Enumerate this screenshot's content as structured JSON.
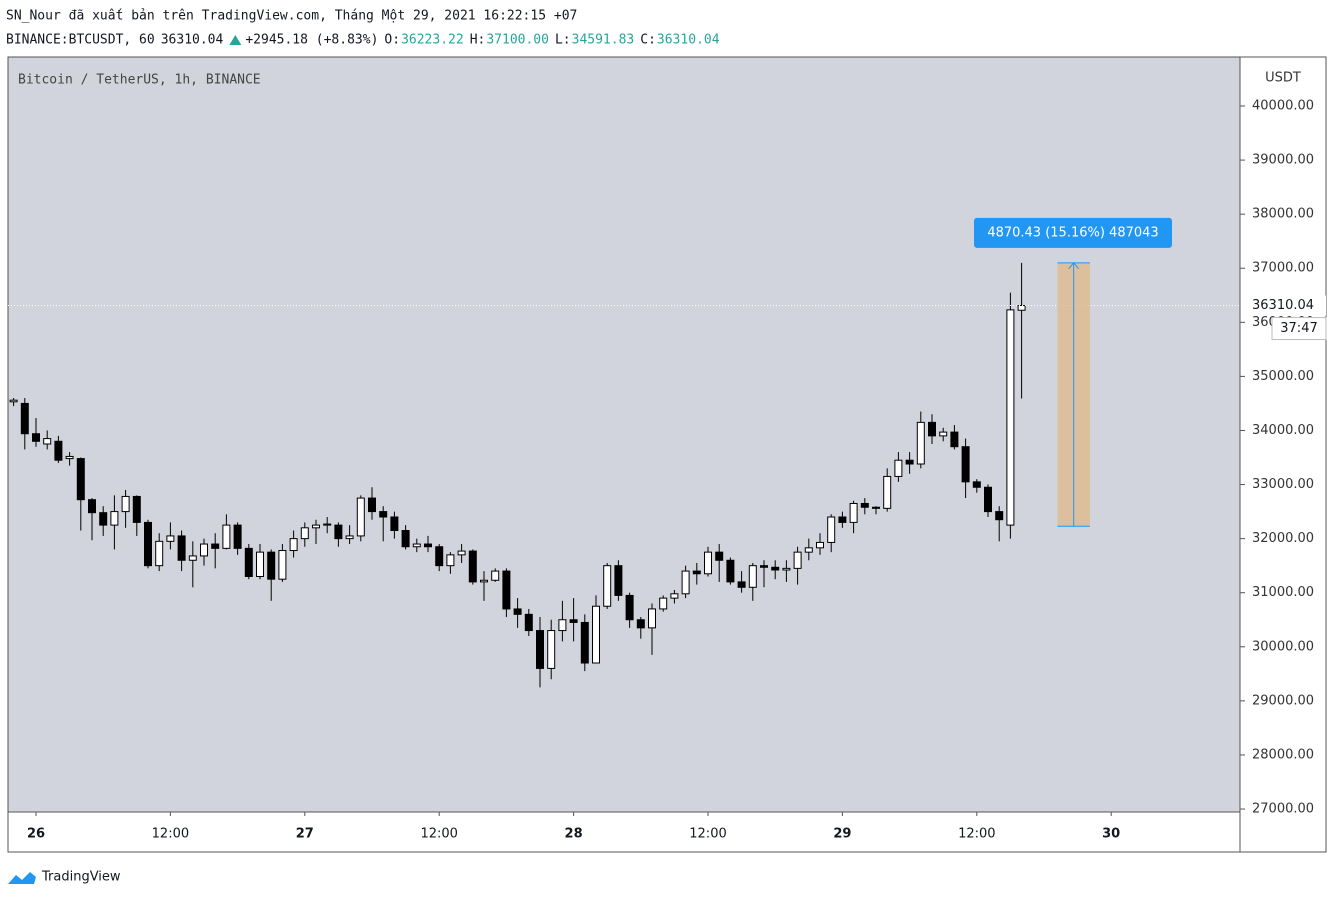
{
  "chart_data": {
    "type": "candlestick",
    "header": {
      "publisher": "SN_Nour đã xuất bản trên TradingView.com, Tháng Một 29, 2021 16:22:15 +07",
      "symbol": "BINANCE:BTCUSDT, 60",
      "price": "36310.04",
      "change": "+2945.18 (+8.83%)",
      "ohlc": [
        {
          "label": "O:",
          "value": "36223.22"
        },
        {
          "label": "H:",
          "value": "37100.00"
        },
        {
          "label": "L:",
          "value": "34591.83"
        },
        {
          "label": "C:",
          "value": "36310.04"
        }
      ]
    },
    "title": "Bitcoin / TetherUS, 1h, BINANCE",
    "y_label": "USDT",
    "logo": "TradingView",
    "up_color": "#ffffff",
    "down_color": "#000000",
    "x": [
      -2,
      -1,
      0,
      1,
      2,
      3,
      4,
      5,
      6,
      7,
      8,
      9,
      10,
      11,
      12,
      13,
      14,
      15,
      16,
      17,
      18,
      19,
      20,
      21,
      22,
      23,
      24,
      25,
      26,
      27,
      28,
      29,
      30,
      31,
      32,
      33,
      34,
      35,
      36,
      37,
      38,
      39,
      40,
      41,
      42,
      43,
      44,
      45,
      46,
      47,
      48,
      49,
      50,
      51,
      52,
      53,
      54,
      55,
      56,
      57,
      58,
      59,
      60,
      61,
      62,
      63,
      64,
      65,
      66,
      67,
      68,
      69,
      70,
      71,
      72,
      73,
      74,
      75,
      76,
      77,
      78,
      79,
      80,
      81,
      82,
      83,
      84,
      85,
      86,
      87,
      88
    ],
    "open": [
      34530,
      34500,
      33940,
      33750,
      33800,
      33480,
      33480,
      32720,
      32480,
      32250,
      32500,
      32780,
      32300,
      31500,
      31950,
      32050,
      31600,
      31680,
      31900,
      31820,
      32250,
      31820,
      31300,
      31750,
      31250,
      31780,
      32000,
      32200,
      32250,
      32250,
      32000,
      32050,
      32750,
      32500,
      32400,
      32150,
      31850,
      31900,
      31850,
      31500,
      31700,
      31770,
      31200,
      31230,
      31400,
      30700,
      30600,
      30300,
      29600,
      30300,
      30500,
      30450,
      29700,
      30750,
      31500,
      30950,
      30500,
      30350,
      30700,
      30900,
      30980,
      31400,
      31350,
      31750,
      31600,
      31200,
      31100,
      31500,
      31470,
      31420,
      31450,
      31750,
      31830,
      31930,
      32400,
      32300,
      32650,
      32580,
      32560,
      33150,
      33450,
      33380,
      34150,
      33900,
      33970,
      33700,
      33050,
      32950,
      32500,
      32250,
      36223.22
    ],
    "high": [
      34600,
      34600,
      34230,
      34000,
      33900,
      33600,
      33500,
      32750,
      32600,
      32800,
      32900,
      32800,
      32350,
      32100,
      32300,
      32150,
      31950,
      32000,
      32100,
      32450,
      32300,
      31900,
      31900,
      31800,
      31900,
      32150,
      32300,
      32350,
      32400,
      32300,
      32250,
      32800,
      32950,
      32600,
      32500,
      32250,
      32000,
      32050,
      31900,
      31750,
      31900,
      31800,
      31400,
      31450,
      31450,
      30900,
      30700,
      30550,
      30500,
      30850,
      30900,
      30600,
      30950,
      31550,
      31600,
      31000,
      30550,
      30800,
      30950,
      31050,
      31500,
      31550,
      31850,
      31900,
      31650,
      31400,
      31550,
      31600,
      31600,
      31600,
      31850,
      32000,
      32100,
      32450,
      32500,
      32700,
      32750,
      32600,
      33300,
      33600,
      33600,
      34350,
      34300,
      34050,
      34100,
      33850,
      33100,
      33000,
      32600,
      36550,
      37100
    ],
    "low": [
      34450,
      33650,
      33700,
      33650,
      33400,
      33350,
      32150,
      31970,
      32050,
      31800,
      32200,
      32050,
      31450,
      31400,
      31800,
      31400,
      31100,
      31500,
      31450,
      31800,
      31700,
      31250,
      31250,
      30850,
      31200,
      31650,
      31850,
      31900,
      32100,
      31850,
      31900,
      31950,
      32350,
      31950,
      32000,
      31800,
      31750,
      31750,
      31400,
      31350,
      31550,
      31150,
      30850,
      31200,
      30550,
      30350,
      30200,
      29250,
      29400,
      30100,
      30100,
      29550,
      29700,
      30700,
      30850,
      30350,
      30150,
      29850,
      30650,
      30800,
      30900,
      31150,
      31300,
      31200,
      31150,
      31000,
      30850,
      31100,
      31250,
      31200,
      31150,
      31600,
      31700,
      31750,
      32200,
      32100,
      32450,
      32450,
      32500,
      33050,
      33200,
      33300,
      33750,
      33800,
      33650,
      32750,
      32850,
      32400,
      31950,
      32000,
      34591.83
    ],
    "close": [
      34560,
      33940,
      33800,
      33850,
      33450,
      33520,
      32720,
      32480,
      32250,
      32500,
      32780,
      32300,
      31500,
      31950,
      32050,
      31600,
      31680,
      31900,
      31820,
      32250,
      31820,
      31300,
      31750,
      31250,
      31780,
      32000,
      32200,
      32250,
      32270,
      32000,
      32050,
      32750,
      32500,
      32400,
      32150,
      31850,
      31900,
      31850,
      31500,
      31700,
      31770,
      31200,
      31230,
      31400,
      30700,
      30600,
      30300,
      29600,
      30300,
      30500,
      30450,
      29700,
      30750,
      31500,
      30950,
      30500,
      30350,
      30700,
      30900,
      30980,
      31400,
      31350,
      31750,
      31600,
      31200,
      31100,
      31500,
      31470,
      31420,
      31450,
      31750,
      31830,
      31930,
      32400,
      32300,
      32650,
      32580,
      32560,
      33150,
      33450,
      33380,
      34150,
      33900,
      33970,
      33700,
      33050,
      32950,
      32500,
      32350,
      36230,
      36310.04
    ],
    "xlim": [
      -2.5,
      107.5
    ],
    "xticks": [
      {
        "value": 0,
        "label": "26"
      },
      {
        "value": 12,
        "label": "12:00"
      },
      {
        "value": 24,
        "label": "27"
      },
      {
        "value": 36,
        "label": "12:00"
      },
      {
        "value": 48,
        "label": "28"
      },
      {
        "value": 60,
        "label": "12:00"
      },
      {
        "value": 72,
        "label": "29"
      },
      {
        "value": 84,
        "label": "12:00"
      },
      {
        "value": 96,
        "label": "30"
      }
    ],
    "ylim": [
      26945,
      40906
    ],
    "yticks": [
      {
        "value": 27000,
        "label": "27000.00"
      },
      {
        "value": 28000,
        "label": "28000.00"
      },
      {
        "value": 29000,
        "label": "29000.00"
      },
      {
        "value": 30000,
        "label": "30000.00"
      },
      {
        "value": 31000,
        "label": "31000.00"
      },
      {
        "value": 32000,
        "label": "32000.00"
      },
      {
        "value": 33000,
        "label": "33000.00"
      },
      {
        "value": 34000,
        "label": "34000.00"
      },
      {
        "value": 35000,
        "label": "35000.00"
      },
      {
        "value": 36000,
        "label": "36000.00"
      },
      {
        "value": 37000,
        "label": "37000.00"
      },
      {
        "value": 38000,
        "label": "38000.00"
      },
      {
        "value": 39000,
        "label": "39000.00"
      },
      {
        "value": 40000,
        "label": "40000.00"
      }
    ],
    "last_price": {
      "value": 36310.04,
      "label": "36310.04",
      "countdown": "37:47"
    },
    "measure": {
      "label": "4870.43 (15.16%) 487043",
      "from": 32229.57,
      "to": 37100,
      "x_start": 91.2,
      "x_end": 94.1
    }
  }
}
